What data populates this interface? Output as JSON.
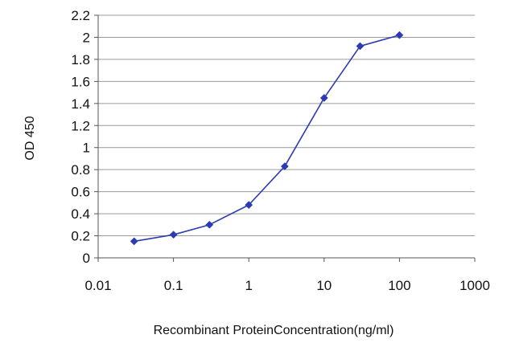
{
  "chart_data": {
    "type": "line",
    "xlabel": "Recombinant ProteinConcentration(ng/ml)",
    "ylabel": "OD 450",
    "xscale": "log",
    "xlim": [
      0.01,
      1000
    ],
    "ylim": [
      0,
      2.2
    ],
    "grid": "horizontal",
    "legend": "none",
    "x_ticks": [
      "0.01",
      "0.1",
      "1",
      "10",
      "100",
      "1000"
    ],
    "y_ticks": [
      "0",
      "0.2",
      "0.4",
      "0.6",
      "0.8",
      "1",
      "1.2",
      "1.4",
      "1.6",
      "1.8",
      "2",
      "2.2"
    ],
    "series": [
      {
        "color": "#2b3bb0",
        "marker": "diamond",
        "x": [
          0.03,
          0.1,
          0.3,
          1,
          3,
          10,
          30,
          100
        ],
        "y": [
          0.15,
          0.21,
          0.3,
          0.48,
          0.83,
          1.45,
          1.92,
          2.02
        ]
      }
    ]
  }
}
